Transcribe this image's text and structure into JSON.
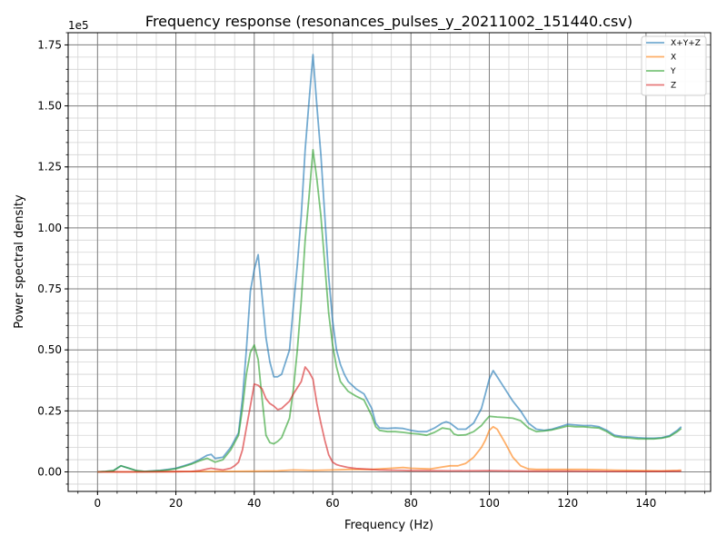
{
  "chart_data": {
    "type": "line",
    "title": "Frequency response (resonances_pulses_y_20211002_151440.csv)",
    "xlabel": "Frequency (Hz)",
    "ylabel": "Power spectral density",
    "y_offset_label": "1e5",
    "xlim": [
      -7.5,
      156.5
    ],
    "ylim": [
      -0.08,
      1.8
    ],
    "x_ticks": [
      0,
      20,
      40,
      60,
      80,
      100,
      120,
      140
    ],
    "x_tick_labels": [
      "0",
      "20",
      "40",
      "60",
      "80",
      "100",
      "120",
      "140"
    ],
    "y_ticks": [
      0,
      0.25,
      0.5,
      0.75,
      1.0,
      1.25,
      1.5,
      1.75
    ],
    "y_tick_labels": [
      "0.00",
      "0.25",
      "0.50",
      "0.75",
      "1.00",
      "1.25",
      "1.50",
      "1.75"
    ],
    "y_unit_note": "values in units of 1e5",
    "grid": true,
    "legend_position": "top-right",
    "series": [
      {
        "name": "X+Y+Z",
        "color": "#1f77b4",
        "points": [
          [
            0,
            0
          ],
          [
            2,
            0.002
          ],
          [
            4,
            0.005
          ],
          [
            6,
            0.025
          ],
          [
            8,
            0.015
          ],
          [
            10,
            0.005
          ],
          [
            12,
            0.002
          ],
          [
            14,
            0.004
          ],
          [
            16,
            0.006
          ],
          [
            18,
            0.01
          ],
          [
            20,
            0.015
          ],
          [
            22,
            0.025
          ],
          [
            24,
            0.035
          ],
          [
            26,
            0.05
          ],
          [
            28,
            0.068
          ],
          [
            29,
            0.072
          ],
          [
            30,
            0.055
          ],
          [
            32,
            0.06
          ],
          [
            34,
            0.1
          ],
          [
            36,
            0.16
          ],
          [
            37,
            0.3
          ],
          [
            38,
            0.5
          ],
          [
            39,
            0.74
          ],
          [
            40,
            0.83
          ],
          [
            41,
            0.89
          ],
          [
            42,
            0.72
          ],
          [
            43,
            0.55
          ],
          [
            44,
            0.45
          ],
          [
            45,
            0.39
          ],
          [
            46,
            0.39
          ],
          [
            47,
            0.4
          ],
          [
            49,
            0.5
          ],
          [
            50,
            0.68
          ],
          [
            51,
            0.85
          ],
          [
            52,
            1.05
          ],
          [
            53,
            1.32
          ],
          [
            54,
            1.52
          ],
          [
            55,
            1.71
          ],
          [
            56,
            1.5
          ],
          [
            57,
            1.3
          ],
          [
            58,
            1.05
          ],
          [
            59,
            0.8
          ],
          [
            60,
            0.62
          ],
          [
            61,
            0.5
          ],
          [
            62,
            0.44
          ],
          [
            63,
            0.4
          ],
          [
            64,
            0.37
          ],
          [
            66,
            0.34
          ],
          [
            68,
            0.32
          ],
          [
            70,
            0.26
          ],
          [
            71,
            0.2
          ],
          [
            72,
            0.18
          ],
          [
            74,
            0.178
          ],
          [
            76,
            0.18
          ],
          [
            78,
            0.178
          ],
          [
            80,
            0.17
          ],
          [
            82,
            0.165
          ],
          [
            84,
            0.165
          ],
          [
            86,
            0.18
          ],
          [
            88,
            0.2
          ],
          [
            89,
            0.205
          ],
          [
            90,
            0.2
          ],
          [
            92,
            0.175
          ],
          [
            94,
            0.175
          ],
          [
            96,
            0.2
          ],
          [
            98,
            0.26
          ],
          [
            99,
            0.32
          ],
          [
            100,
            0.38
          ],
          [
            101,
            0.415
          ],
          [
            102,
            0.39
          ],
          [
            104,
            0.34
          ],
          [
            106,
            0.29
          ],
          [
            108,
            0.25
          ],
          [
            109,
            0.225
          ],
          [
            110,
            0.2
          ],
          [
            112,
            0.175
          ],
          [
            114,
            0.17
          ],
          [
            116,
            0.175
          ],
          [
            118,
            0.185
          ],
          [
            120,
            0.195
          ],
          [
            122,
            0.192
          ],
          [
            124,
            0.19
          ],
          [
            126,
            0.19
          ],
          [
            128,
            0.185
          ],
          [
            130,
            0.17
          ],
          [
            132,
            0.15
          ],
          [
            134,
            0.145
          ],
          [
            136,
            0.143
          ],
          [
            138,
            0.14
          ],
          [
            140,
            0.138
          ],
          [
            142,
            0.138
          ],
          [
            144,
            0.14
          ],
          [
            146,
            0.148
          ],
          [
            148,
            0.17
          ],
          [
            149,
            0.185
          ]
        ]
      },
      {
        "name": "X",
        "color": "#ff7f0e",
        "points": [
          [
            0,
            0
          ],
          [
            10,
            0
          ],
          [
            20,
            0.001
          ],
          [
            30,
            0.002
          ],
          [
            40,
            0.003
          ],
          [
            46,
            0.004
          ],
          [
            50,
            0.008
          ],
          [
            55,
            0.006
          ],
          [
            60,
            0.008
          ],
          [
            65,
            0.01
          ],
          [
            70,
            0.01
          ],
          [
            75,
            0.015
          ],
          [
            78,
            0.018
          ],
          [
            80,
            0.015
          ],
          [
            85,
            0.012
          ],
          [
            88,
            0.02
          ],
          [
            90,
            0.025
          ],
          [
            92,
            0.025
          ],
          [
            94,
            0.035
          ],
          [
            96,
            0.06
          ],
          [
            98,
            0.1
          ],
          [
            99,
            0.13
          ],
          [
            100,
            0.17
          ],
          [
            101,
            0.185
          ],
          [
            102,
            0.175
          ],
          [
            104,
            0.12
          ],
          [
            106,
            0.06
          ],
          [
            108,
            0.025
          ],
          [
            110,
            0.012
          ],
          [
            112,
            0.01
          ],
          [
            116,
            0.01
          ],
          [
            120,
            0.01
          ],
          [
            124,
            0.01
          ],
          [
            128,
            0.009
          ],
          [
            132,
            0.007
          ],
          [
            136,
            0.006
          ],
          [
            140,
            0.005
          ],
          [
            144,
            0.004
          ],
          [
            148,
            0.006
          ],
          [
            149,
            0.007
          ]
        ]
      },
      {
        "name": "Y",
        "color": "#2ca02c",
        "points": [
          [
            0,
            0
          ],
          [
            2,
            0.002
          ],
          [
            4,
            0.005
          ],
          [
            6,
            0.025
          ],
          [
            8,
            0.015
          ],
          [
            10,
            0.005
          ],
          [
            12,
            0.002
          ],
          [
            14,
            0.003
          ],
          [
            16,
            0.005
          ],
          [
            18,
            0.008
          ],
          [
            20,
            0.013
          ],
          [
            22,
            0.022
          ],
          [
            24,
            0.032
          ],
          [
            26,
            0.045
          ],
          [
            28,
            0.056
          ],
          [
            30,
            0.04
          ],
          [
            32,
            0.05
          ],
          [
            34,
            0.09
          ],
          [
            36,
            0.15
          ],
          [
            37,
            0.26
          ],
          [
            38,
            0.4
          ],
          [
            39,
            0.49
          ],
          [
            40,
            0.52
          ],
          [
            41,
            0.46
          ],
          [
            42,
            0.3
          ],
          [
            43,
            0.15
          ],
          [
            44,
            0.12
          ],
          [
            45,
            0.115
          ],
          [
            46,
            0.125
          ],
          [
            47,
            0.14
          ],
          [
            49,
            0.22
          ],
          [
            50,
            0.34
          ],
          [
            51,
            0.5
          ],
          [
            52,
            0.7
          ],
          [
            53,
            0.95
          ],
          [
            54,
            1.13
          ],
          [
            55,
            1.32
          ],
          [
            56,
            1.2
          ],
          [
            57,
            1.05
          ],
          [
            58,
            0.85
          ],
          [
            59,
            0.65
          ],
          [
            60,
            0.52
          ],
          [
            61,
            0.43
          ],
          [
            62,
            0.37
          ],
          [
            64,
            0.33
          ],
          [
            66,
            0.31
          ],
          [
            68,
            0.295
          ],
          [
            70,
            0.23
          ],
          [
            71,
            0.185
          ],
          [
            72,
            0.17
          ],
          [
            74,
            0.165
          ],
          [
            76,
            0.165
          ],
          [
            78,
            0.162
          ],
          [
            80,
            0.158
          ],
          [
            82,
            0.155
          ],
          [
            84,
            0.15
          ],
          [
            86,
            0.162
          ],
          [
            88,
            0.18
          ],
          [
            90,
            0.175
          ],
          [
            91,
            0.155
          ],
          [
            92,
            0.15
          ],
          [
            94,
            0.152
          ],
          [
            96,
            0.165
          ],
          [
            98,
            0.19
          ],
          [
            99,
            0.21
          ],
          [
            100,
            0.228
          ],
          [
            102,
            0.225
          ],
          [
            104,
            0.223
          ],
          [
            106,
            0.22
          ],
          [
            108,
            0.21
          ],
          [
            110,
            0.18
          ],
          [
            112,
            0.165
          ],
          [
            114,
            0.168
          ],
          [
            116,
            0.172
          ],
          [
            118,
            0.18
          ],
          [
            120,
            0.188
          ],
          [
            122,
            0.185
          ],
          [
            124,
            0.185
          ],
          [
            126,
            0.182
          ],
          [
            128,
            0.18
          ],
          [
            130,
            0.165
          ],
          [
            132,
            0.145
          ],
          [
            134,
            0.14
          ],
          [
            136,
            0.138
          ],
          [
            138,
            0.135
          ],
          [
            140,
            0.135
          ],
          [
            142,
            0.135
          ],
          [
            144,
            0.138
          ],
          [
            146,
            0.145
          ],
          [
            148,
            0.165
          ],
          [
            149,
            0.178
          ]
        ]
      },
      {
        "name": "Z",
        "color": "#d62728",
        "points": [
          [
            0,
            0
          ],
          [
            10,
            0
          ],
          [
            20,
            0.001
          ],
          [
            24,
            0.002
          ],
          [
            26,
            0.005
          ],
          [
            28,
            0.012
          ],
          [
            29,
            0.015
          ],
          [
            30,
            0.012
          ],
          [
            32,
            0.008
          ],
          [
            34,
            0.015
          ],
          [
            35,
            0.025
          ],
          [
            36,
            0.04
          ],
          [
            37,
            0.09
          ],
          [
            38,
            0.18
          ],
          [
            39,
            0.27
          ],
          [
            40,
            0.36
          ],
          [
            41,
            0.355
          ],
          [
            42,
            0.34
          ],
          [
            43,
            0.3
          ],
          [
            44,
            0.28
          ],
          [
            45,
            0.27
          ],
          [
            46,
            0.255
          ],
          [
            47,
            0.26
          ],
          [
            49,
            0.29
          ],
          [
            50,
            0.32
          ],
          [
            52,
            0.37
          ],
          [
            53,
            0.43
          ],
          [
            54,
            0.41
          ],
          [
            55,
            0.38
          ],
          [
            56,
            0.28
          ],
          [
            57,
            0.2
          ],
          [
            58,
            0.13
          ],
          [
            59,
            0.07
          ],
          [
            60,
            0.04
          ],
          [
            61,
            0.03
          ],
          [
            62,
            0.025
          ],
          [
            64,
            0.018
          ],
          [
            66,
            0.014
          ],
          [
            68,
            0.012
          ],
          [
            70,
            0.01
          ],
          [
            72,
            0.008
          ],
          [
            74,
            0.007
          ],
          [
            78,
            0.006
          ],
          [
            80,
            0.005
          ],
          [
            84,
            0.005
          ],
          [
            90,
            0.004
          ],
          [
            100,
            0.005
          ],
          [
            110,
            0.003
          ],
          [
            120,
            0.003
          ],
          [
            130,
            0.002
          ],
          [
            140,
            0.002
          ],
          [
            149,
            0.003
          ]
        ]
      }
    ]
  }
}
